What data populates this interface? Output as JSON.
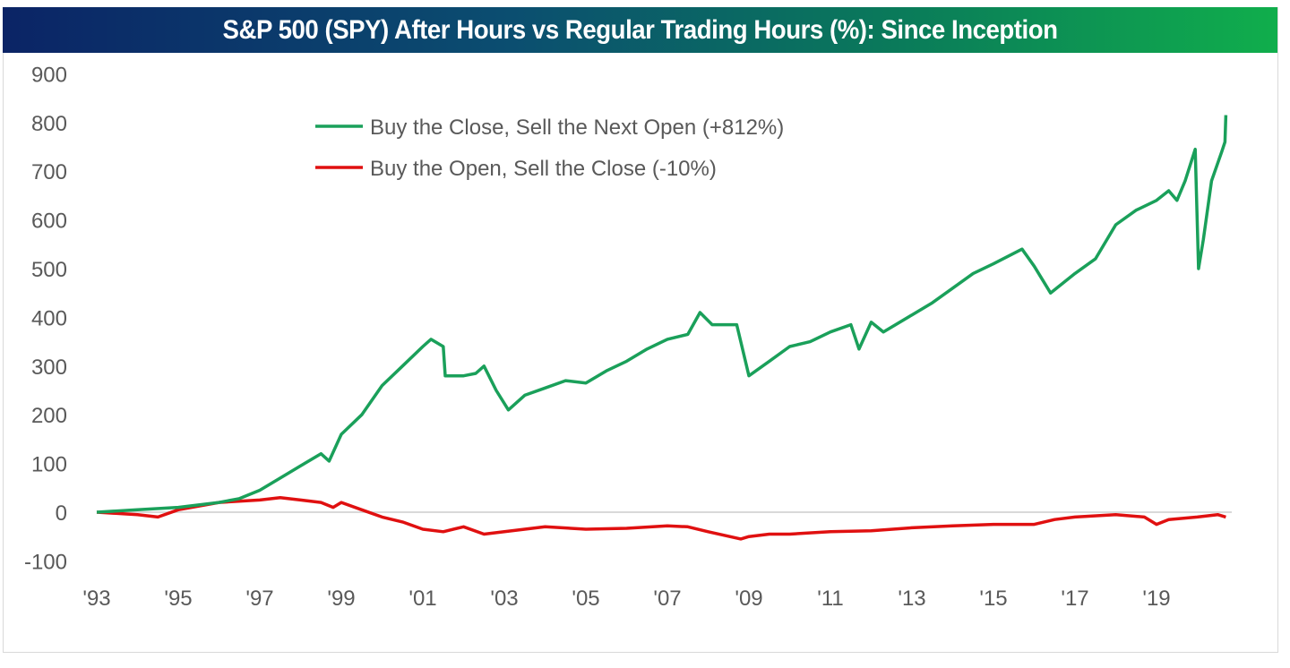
{
  "chart_data": {
    "type": "line",
    "title": "S&P 500 (SPY) After Hours vs Regular Trading Hours (%): Since Inception",
    "xlabel": "",
    "ylabel": "",
    "ylim": [
      -100,
      900
    ],
    "xlim": [
      1993,
      2021
    ],
    "yticks": [
      900,
      800,
      700,
      600,
      500,
      400,
      300,
      200,
      100,
      0,
      -100
    ],
    "ytick_labels": [
      "900",
      "800",
      "700",
      "600",
      "500",
      "400",
      "300",
      "200",
      "100",
      "0",
      "-100"
    ],
    "xticks": [
      1993,
      1995,
      1997,
      1999,
      2001,
      2003,
      2005,
      2007,
      2009,
      2011,
      2013,
      2015,
      2017,
      2019
    ],
    "xtick_labels": [
      "'93",
      "'95",
      "'97",
      "'99",
      "'01",
      "'03",
      "'05",
      "'07",
      "'09",
      "'11",
      "'13",
      "'15",
      "'17",
      "'19"
    ],
    "grid": "zero-line only",
    "legend_position": "top-left",
    "series": [
      {
        "name": "Buy the Close, Sell the Next Open (+812%)",
        "color": "#1aa05a",
        "x": [
          1993,
          1994,
          1995,
          1996,
          1996.5,
          1997,
          1997.5,
          1998,
          1998.5,
          1998.7,
          1999,
          1999.5,
          2000,
          2000.5,
          2001,
          2001.2,
          2001.5,
          2001.55,
          2002,
          2002.3,
          2002.5,
          2002.8,
          2003.1,
          2003.5,
          2004,
          2004.5,
          2005,
          2005.5,
          2006,
          2006.5,
          2007,
          2007.5,
          2007.8,
          2008.1,
          2008.7,
          2009,
          2009.5,
          2010,
          2010.5,
          2011,
          2011.5,
          2011.7,
          2012,
          2012.3,
          2013,
          2013.5,
          2014,
          2014.5,
          2015,
          2015.7,
          2016,
          2016.4,
          2017,
          2017.5,
          2018,
          2018.5,
          2019,
          2019.3,
          2019.5,
          2019.7,
          2019.95,
          2020.03,
          2020.15,
          2020.35,
          2020.6,
          2020.68,
          2020.7
        ],
        "y": [
          0,
          5,
          10,
          20,
          28,
          45,
          70,
          95,
          120,
          105,
          160,
          200,
          260,
          300,
          340,
          355,
          340,
          280,
          280,
          285,
          300,
          250,
          210,
          240,
          255,
          270,
          265,
          290,
          310,
          335,
          355,
          365,
          410,
          385,
          385,
          280,
          310,
          340,
          350,
          370,
          385,
          335,
          390,
          370,
          405,
          430,
          460,
          490,
          510,
          540,
          505,
          450,
          490,
          520,
          590,
          620,
          640,
          660,
          640,
          680,
          745,
          500,
          560,
          680,
          740,
          760,
          815
        ]
      },
      {
        "name": "Buy the Open, Sell the Close (-10%)",
        "color": "#e01010",
        "x": [
          1993,
          1994,
          1994.5,
          1995,
          1996,
          1997,
          1997.5,
          1998,
          1998.5,
          1998.8,
          1999,
          1999.5,
          2000,
          2000.5,
          2001,
          2001.5,
          2002,
          2002.5,
          2003,
          2003.5,
          2004,
          2005,
          2006,
          2007,
          2007.5,
          2008,
          2008.8,
          2009,
          2009.5,
          2010,
          2011,
          2012,
          2013,
          2014,
          2015,
          2016,
          2016.5,
          2017,
          2018,
          2018.7,
          2019,
          2019.3,
          2020,
          2020.5,
          2020.7
        ],
        "y": [
          0,
          -5,
          -10,
          5,
          20,
          25,
          30,
          25,
          20,
          10,
          20,
          5,
          -10,
          -20,
          -35,
          -40,
          -30,
          -45,
          -40,
          -35,
          -30,
          -35,
          -33,
          -28,
          -30,
          -40,
          -55,
          -50,
          -45,
          -45,
          -40,
          -38,
          -32,
          -28,
          -25,
          -25,
          -15,
          -10,
          -5,
          -10,
          -25,
          -15,
          -10,
          -5,
          -10
        ]
      }
    ]
  }
}
